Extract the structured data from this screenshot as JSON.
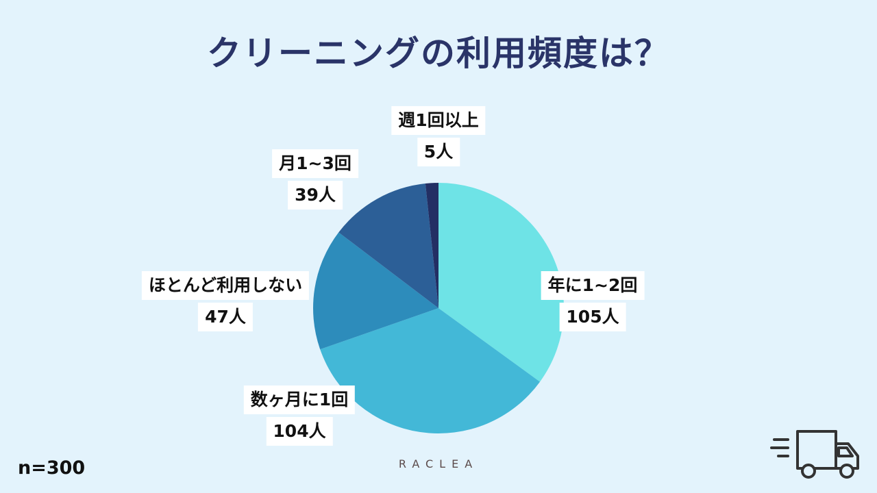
{
  "title": "クリーニングの利用頻度は？",
  "footer": {
    "sample_size": "n=300",
    "brand": "RACLEA"
  },
  "icons": {
    "truck": "delivery-truck-icon"
  },
  "chart_data": {
    "type": "pie",
    "title": "クリーニングの利用頻度は？",
    "slices": [
      {
        "name": "年に1~2回",
        "value": 105,
        "value_label": "105人",
        "color": "#6ee3e6"
      },
      {
        "name": "数ヶ月に1回",
        "value": 104,
        "value_label": "104人",
        "color": "#43b8d7"
      },
      {
        "name": "ほとんど利用しない",
        "value": 47,
        "value_label": "47人",
        "color": "#2d8cbb"
      },
      {
        "name": "月1~3回",
        "value": 39,
        "value_label": "39人",
        "color": "#2c5f97"
      },
      {
        "name": "週1回以上",
        "value": 5,
        "value_label": "5人",
        "color": "#232f64"
      }
    ],
    "start": "12 o'clock",
    "direction": "clockwise",
    "total_label": "n=300"
  }
}
